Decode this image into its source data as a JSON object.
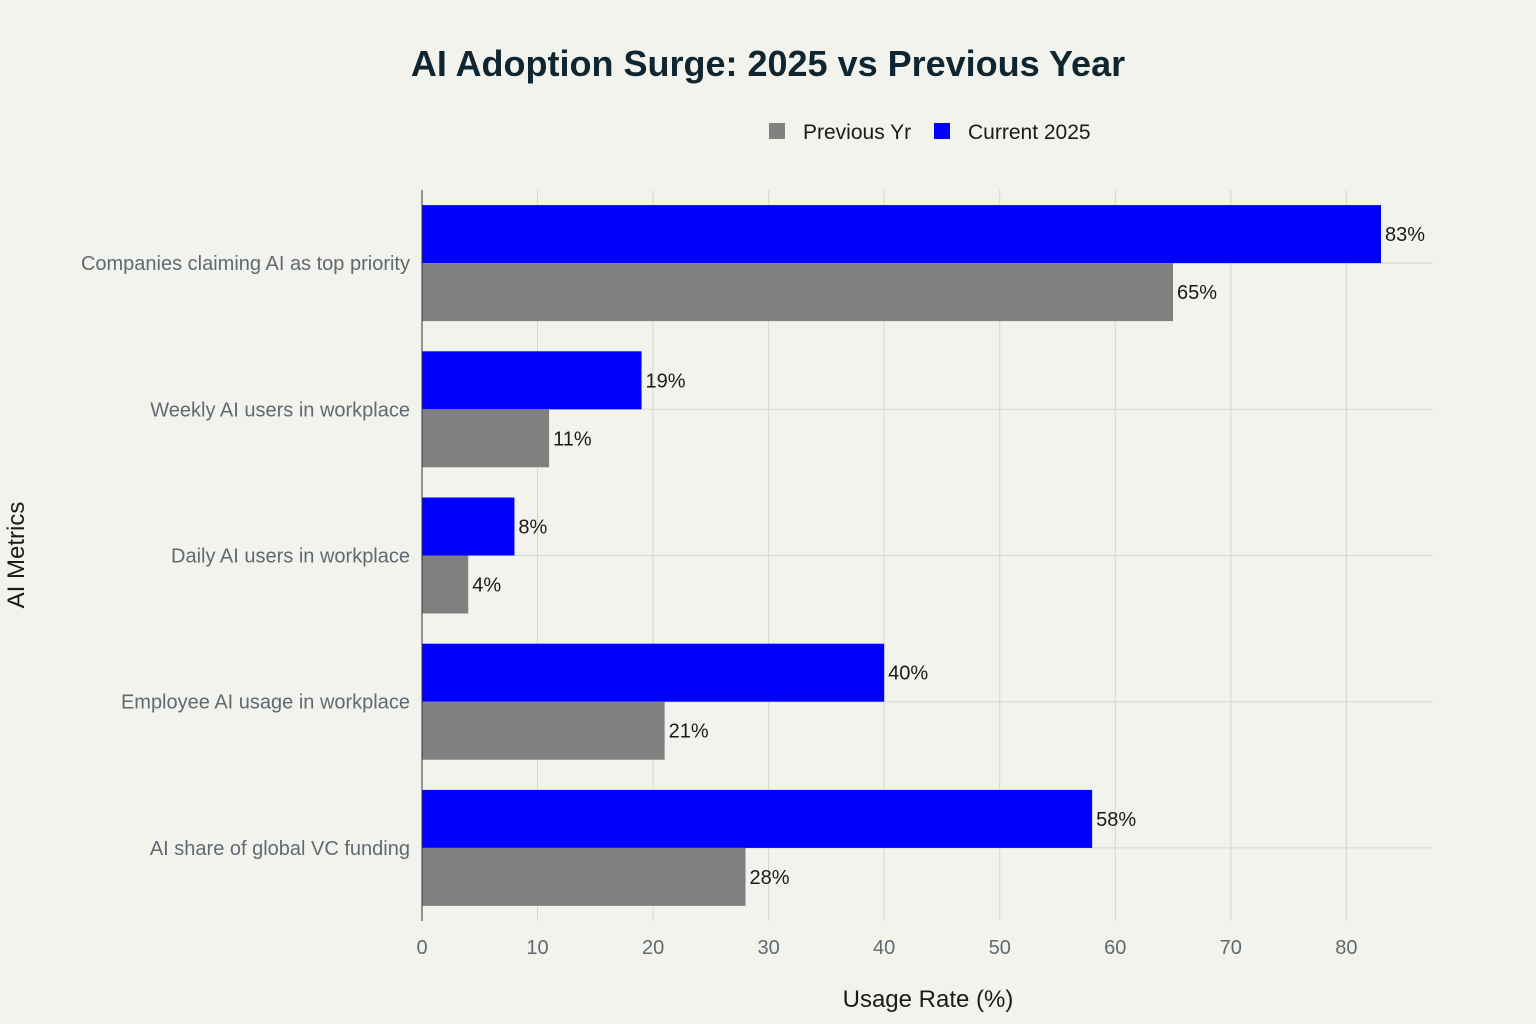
{
  "chart_data": {
    "type": "bar",
    "orientation": "horizontal",
    "title": "AI Adoption Surge: 2025 vs Previous Year",
    "xlabel": "Usage Rate (%)",
    "ylabel": "AI Metrics",
    "xlim": [
      0,
      87.5
    ],
    "xticks": [
      0,
      10,
      20,
      30,
      40,
      50,
      60,
      70,
      80
    ],
    "grid": true,
    "legend_position": "top-center",
    "categories": [
      "Companies claiming AI as top priority",
      "Weekly AI users in workplace",
      "Daily AI users in workplace",
      "Employee AI usage in workplace",
      "AI share of global VC funding"
    ],
    "series": [
      {
        "name": "Previous Yr",
        "color": "#808080",
        "values": [
          65,
          11,
          4,
          21,
          28
        ],
        "labels": [
          "65%",
          "11%",
          "4%",
          "21%",
          "28%"
        ]
      },
      {
        "name": "Current 2025",
        "color": "#0000ff",
        "values": [
          83,
          19,
          8,
          40,
          58
        ],
        "labels": [
          "83%",
          "19%",
          "8%",
          "40%",
          "58%"
        ]
      }
    ]
  }
}
